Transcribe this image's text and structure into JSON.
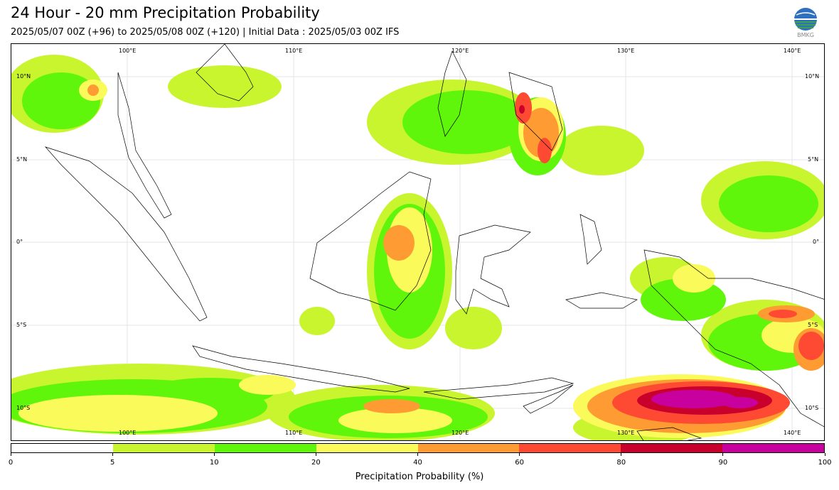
{
  "header": {
    "title": "24 Hour - 20 mm Precipitation Probability",
    "subtitle": "2025/05/07 00Z (+96) to 2025/05/08 00Z (+120) | Initial Data : 2025/05/03 00Z IFS"
  },
  "logo": {
    "text": "BMKG",
    "icon": "bmkg-globe-icon"
  },
  "map": {
    "lon_labels": [
      "100°E",
      "110°E",
      "120°E",
      "130°E",
      "140°E"
    ],
    "lat_labels": [
      "10°N",
      "5°N",
      "0°",
      "5°S",
      "10°S"
    ]
  },
  "colorbar": {
    "label": "Precipitation Probability (%)",
    "ticks": [
      "0",
      "5",
      "10",
      "20",
      "40",
      "60",
      "80",
      "90",
      "100"
    ],
    "colors": [
      "#ffffff",
      "#c8f52e",
      "#5ff60b",
      "#fbfa5b",
      "#fe9b32",
      "#fe4a32",
      "#c8002b",
      "#c7009e"
    ]
  }
}
